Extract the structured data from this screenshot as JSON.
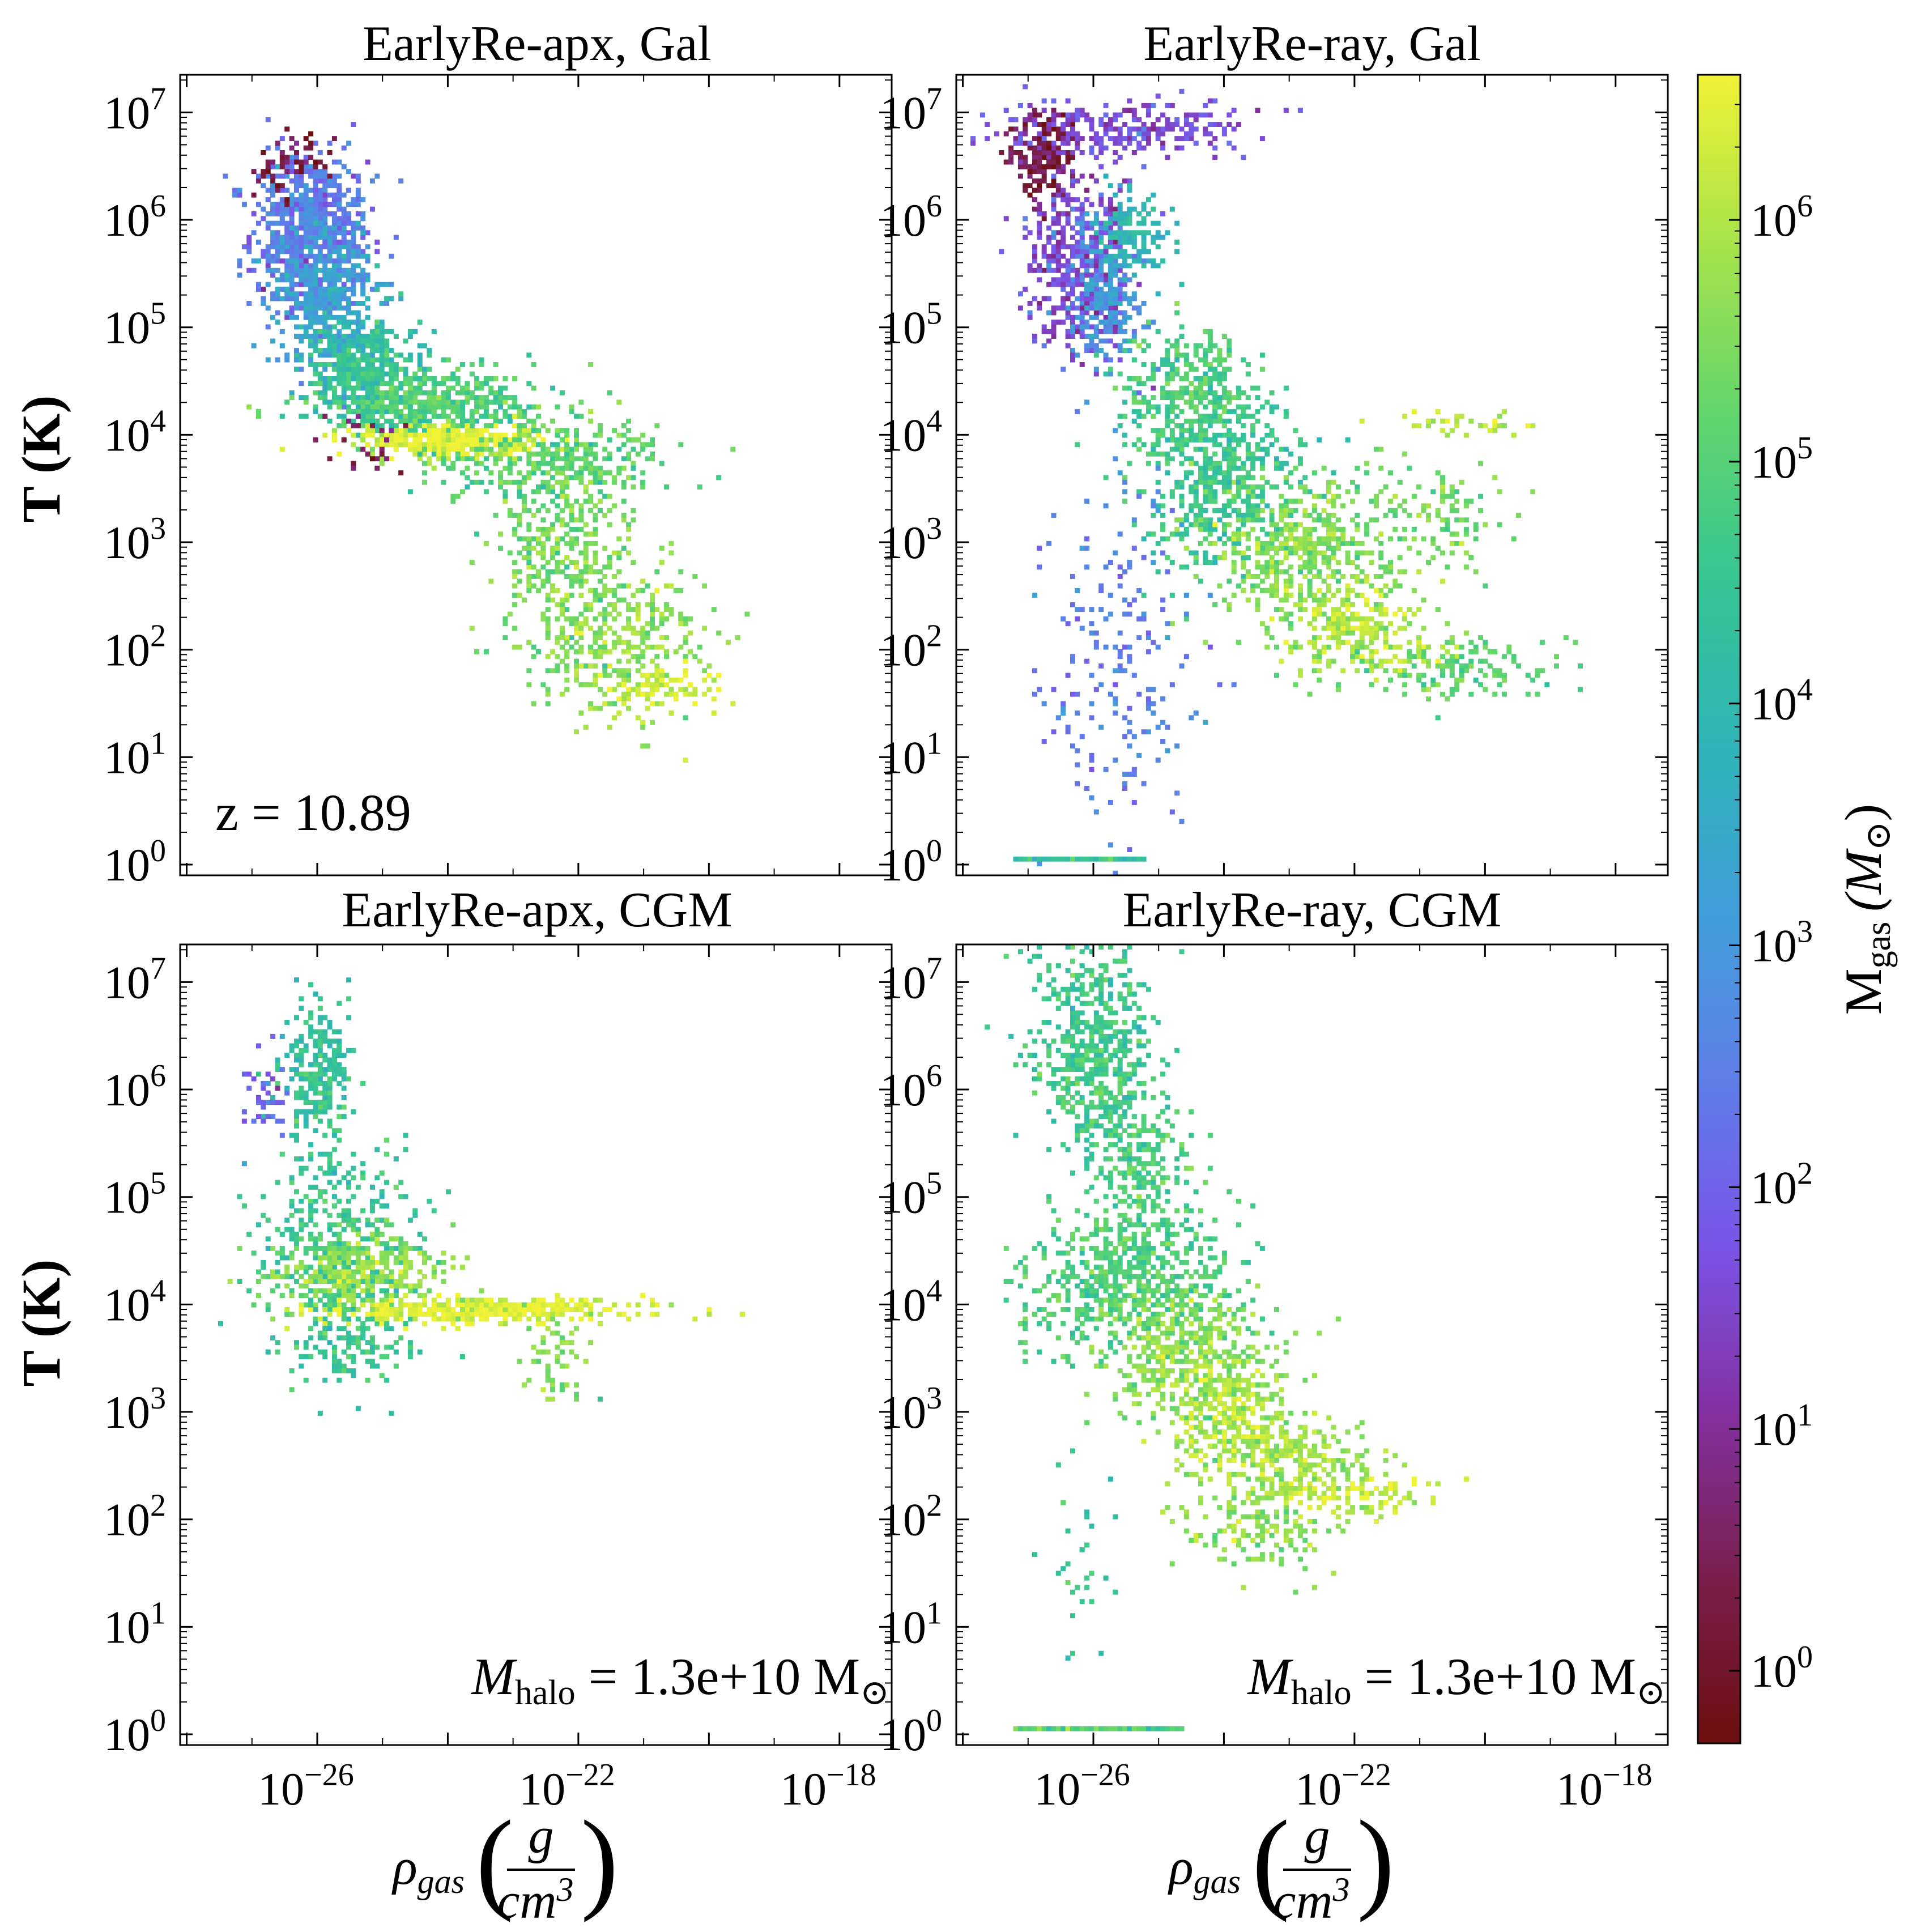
{
  "figure": {
    "colorbar": {
      "label": "M",
      "label_sub": "gas",
      "label_unit": "(M",
      "label_unit_sub": "⊙",
      "label_close": ")",
      "tick_base": "10",
      "tick_exponents": [
        "0",
        "1",
        "2",
        "3",
        "4",
        "5",
        "6"
      ],
      "range_log10": [
        -0.3,
        6.6
      ],
      "colormap": "viridis_r (plasma-like) with dark red minimum",
      "stops": [
        "#6b0f0f",
        "#7a1f4d",
        "#8431a3",
        "#7a55e8",
        "#5e7fe8",
        "#3f9fd8",
        "#2fb4b6",
        "#37c592",
        "#63d66a",
        "#a8e34a",
        "#f0f236"
      ]
    },
    "y_axis": {
      "label": "T (K)",
      "tick_base": "10",
      "tick_exponents": [
        "0",
        "1",
        "2",
        "3",
        "4",
        "5",
        "6",
        "7"
      ],
      "scale": "log",
      "range_log10": [
        -0.1,
        7.35
      ]
    },
    "x_axis": {
      "label_main": "ρ",
      "label_sub": "gas",
      "label_frac_num": "g",
      "label_frac_den": "cm",
      "label_frac_den_sup": "3",
      "tick_base": "10",
      "tick_exponents": [
        "−26",
        "−22",
        "−18"
      ],
      "scale": "log",
      "range_log10": [
        -28.1,
        -17.2
      ]
    }
  },
  "chart_data": [
    {
      "type": "heatmap",
      "title": "EarlyRe-apx, Gal",
      "annotation": "z = 10.89",
      "clusters": [
        {
          "x_log": -26.1,
          "y_log": 5.9,
          "sx": 0.45,
          "sy": 0.35,
          "n": 700,
          "c_log": 2.3
        },
        {
          "x_log": -26.3,
          "y_log": 6.45,
          "sx": 0.3,
          "sy": 0.2,
          "n": 120,
          "c_log": 0.3
        },
        {
          "x_log": -25.9,
          "y_log": 5.3,
          "sx": 0.4,
          "sy": 0.35,
          "n": 450,
          "c_log": 3.2
        },
        {
          "x_log": -25.3,
          "y_log": 4.6,
          "sx": 0.45,
          "sy": 0.25,
          "n": 450,
          "c_log": 4.2
        },
        {
          "x_log": -24.2,
          "y_log": 4.3,
          "sx": 0.8,
          "sy": 0.15,
          "n": 500,
          "c_log": 4.8
        },
        {
          "x_log": -24.0,
          "y_log": 3.95,
          "sx": 0.7,
          "sy": 0.07,
          "n": 300,
          "c_log": 6.3
        },
        {
          "x_log": -22.6,
          "y_log": 3.8,
          "sx": 0.9,
          "sy": 0.2,
          "n": 350,
          "c_log": 5.0
        },
        {
          "x_log": -22.2,
          "y_log": 3.0,
          "sx": 0.5,
          "sy": 0.5,
          "n": 350,
          "c_log": 5.4
        },
        {
          "x_log": -21.4,
          "y_log": 2.1,
          "sx": 0.7,
          "sy": 0.35,
          "n": 350,
          "c_log": 5.6
        },
        {
          "x_log": -20.7,
          "y_log": 1.65,
          "sx": 0.5,
          "sy": 0.1,
          "n": 80,
          "c_log": 6.3
        },
        {
          "x_log": -25.2,
          "y_log": 4.0,
          "sx": 0.3,
          "sy": 0.2,
          "n": 60,
          "c_log": 0.5
        }
      ]
    },
    {
      "type": "heatmap",
      "title": "EarlyRe-ray, Gal",
      "annotation": "",
      "clusters": [
        {
          "x_log": -26.8,
          "y_log": 6.6,
          "sx": 0.25,
          "sy": 0.2,
          "n": 160,
          "c_log": 0.2
        },
        {
          "x_log": -25.6,
          "y_log": 6.85,
          "sx": 1.0,
          "sy": 0.15,
          "n": 260,
          "c_log": 1.6
        },
        {
          "x_log": -26.2,
          "y_log": 5.6,
          "sx": 0.4,
          "sy": 0.4,
          "n": 500,
          "c_log": 1.5
        },
        {
          "x_log": -25.8,
          "y_log": 5.3,
          "sx": 0.3,
          "sy": 0.3,
          "n": 250,
          "c_log": 3.0
        },
        {
          "x_log": -25.4,
          "y_log": 5.9,
          "sx": 0.3,
          "sy": 0.2,
          "n": 150,
          "c_log": 3.8
        },
        {
          "x_log": -24.6,
          "y_log": 4.4,
          "sx": 0.5,
          "sy": 0.3,
          "n": 350,
          "c_log": 4.8
        },
        {
          "x_log": -24.0,
          "y_log": 3.6,
          "sx": 0.6,
          "sy": 0.4,
          "n": 500,
          "c_log": 4.5
        },
        {
          "x_log": -22.8,
          "y_log": 2.9,
          "sx": 0.7,
          "sy": 0.35,
          "n": 500,
          "c_log": 5.5
        },
        {
          "x_log": -21.9,
          "y_log": 2.2,
          "sx": 0.6,
          "sy": 0.2,
          "n": 250,
          "c_log": 6.0
        },
        {
          "x_log": -20.8,
          "y_log": 3.3,
          "sx": 0.6,
          "sy": 0.25,
          "n": 120,
          "c_log": 5.3
        },
        {
          "x_log": -20.5,
          "y_log": 1.8,
          "sx": 0.8,
          "sy": 0.15,
          "n": 150,
          "c_log": 5.1
        },
        {
          "x_log": -25.6,
          "y_log": 2.0,
          "sx": 0.6,
          "sy": 1.0,
          "n": 220,
          "c_log": 2.5
        },
        {
          "x_log": -20.4,
          "y_log": 4.1,
          "sx": 0.5,
          "sy": 0.05,
          "n": 40,
          "c_log": 6.0
        }
      ],
      "floor": {
        "x_from": -27.2,
        "x_to": -25.2,
        "y_log": 0.05,
        "c_log": 4.5
      }
    },
    {
      "type": "heatmap",
      "title": "EarlyRe-apx, CGM",
      "annotation": "M",
      "annotation_sub": "halo",
      "annotation_rest": " = 1.3e+10 M",
      "annotation_sub2": "⊙",
      "clusters": [
        {
          "x_log": -26.0,
          "y_log": 6.1,
          "sx": 0.25,
          "sy": 0.35,
          "n": 300,
          "c_log": 4.3
        },
        {
          "x_log": -26.8,
          "y_log": 5.9,
          "sx": 0.2,
          "sy": 0.25,
          "n": 40,
          "c_log": 2.0
        },
        {
          "x_log": -25.6,
          "y_log": 4.5,
          "sx": 0.6,
          "sy": 0.4,
          "n": 450,
          "c_log": 4.6
        },
        {
          "x_log": -25.4,
          "y_log": 4.3,
          "sx": 0.7,
          "sy": 0.15,
          "n": 300,
          "c_log": 5.6
        },
        {
          "x_log": -23.5,
          "y_log": 3.95,
          "sx": 1.2,
          "sy": 0.06,
          "n": 400,
          "c_log": 6.3
        },
        {
          "x_log": -22.3,
          "y_log": 3.5,
          "sx": 0.25,
          "sy": 0.25,
          "n": 60,
          "c_log": 5.5
        },
        {
          "x_log": -25.5,
          "y_log": 3.6,
          "sx": 0.5,
          "sy": 0.2,
          "n": 120,
          "c_log": 4.5
        }
      ]
    },
    {
      "type": "heatmap",
      "title": "EarlyRe-ray, CGM",
      "annotation": "M",
      "annotation_sub": "halo",
      "annotation_rest": " = 1.3e+10 M",
      "annotation_sub2": "⊙",
      "clusters": [
        {
          "x_log": -26.0,
          "y_log": 6.4,
          "sx": 0.45,
          "sy": 0.5,
          "n": 600,
          "c_log": 4.6
        },
        {
          "x_log": -25.3,
          "y_log": 5.3,
          "sx": 0.4,
          "sy": 0.3,
          "n": 200,
          "c_log": 4.8
        },
        {
          "x_log": -25.4,
          "y_log": 4.2,
          "sx": 0.8,
          "sy": 0.35,
          "n": 650,
          "c_log": 4.9
        },
        {
          "x_log": -24.6,
          "y_log": 3.5,
          "sx": 0.6,
          "sy": 0.3,
          "n": 400,
          "c_log": 5.6
        },
        {
          "x_log": -23.8,
          "y_log": 2.9,
          "sx": 0.5,
          "sy": 0.3,
          "n": 300,
          "c_log": 5.9
        },
        {
          "x_log": -22.8,
          "y_log": 2.5,
          "sx": 0.6,
          "sy": 0.2,
          "n": 250,
          "c_log": 5.7
        },
        {
          "x_log": -21.8,
          "y_log": 2.2,
          "sx": 0.5,
          "sy": 0.1,
          "n": 80,
          "c_log": 6.3
        },
        {
          "x_log": -23.5,
          "y_log": 1.9,
          "sx": 0.6,
          "sy": 0.2,
          "n": 150,
          "c_log": 5.6
        },
        {
          "x_log": -26.2,
          "y_log": 1.5,
          "sx": 0.3,
          "sy": 0.5,
          "n": 30,
          "c_log": 4.5
        }
      ],
      "floor": {
        "x_from": -27.2,
        "x_to": -24.6,
        "y_log": 0.05,
        "c_log": 5.0
      }
    }
  ]
}
